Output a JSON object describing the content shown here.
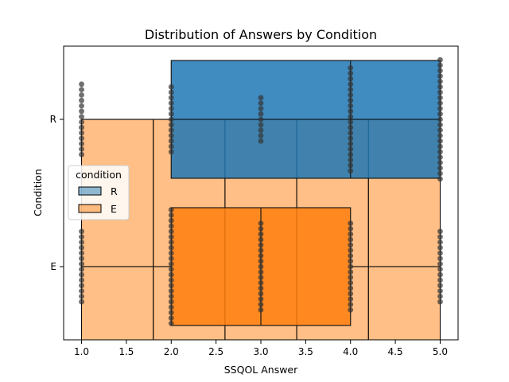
{
  "chart_data": {
    "type": "box",
    "title": "Distribution of Answers by Condition",
    "xlabel": "SSQOL Answer",
    "ylabel": "Condition",
    "xlim": [
      0.8,
      5.2
    ],
    "xticks": [
      "1.0",
      "1.5",
      "2.0",
      "2.5",
      "3.0",
      "3.5",
      "4.0",
      "4.5",
      "5.0"
    ],
    "categories": [
      "R",
      "E"
    ],
    "colors": {
      "R": "#1f77b4",
      "E": "#ff7f0e"
    },
    "legend": {
      "title": "condition",
      "placement": "center-left",
      "entries": [
        {
          "label": "R",
          "color": "#1f77b4"
        },
        {
          "label": "E",
          "color": "#ff7f0e"
        }
      ]
    },
    "histogram_bands": [
      {
        "condition": "R",
        "bins": [
          [
            2.0,
            5.0
          ]
        ],
        "color": "#1f77b4"
      },
      {
        "condition": "E",
        "bins": [
          [
            1.0,
            1.8
          ],
          [
            1.8,
            2.6
          ],
          [
            2.6,
            3.4
          ],
          [
            3.4,
            4.2
          ],
          [
            4.2,
            5.0
          ]
        ],
        "color": "#ff7f0e"
      }
    ],
    "boxes": [
      {
        "condition": "R",
        "q1": 2.0,
        "q3": 5.0,
        "median": 4.0,
        "whisker_low": 1.0,
        "whisker_high": 5.0,
        "color": "#1f77b4"
      },
      {
        "condition": "E",
        "q1": 2.0,
        "q3": 4.0,
        "median": 3.0,
        "whisker_low": 1.0,
        "whisker_high": 5.0,
        "color": "#ff7f0e"
      }
    ],
    "swarm": [
      {
        "condition": "R",
        "x": 1,
        "count": 14
      },
      {
        "condition": "R",
        "x": 2,
        "count": 13
      },
      {
        "condition": "R",
        "x": 3,
        "count": 9
      },
      {
        "condition": "R",
        "x": 4,
        "count": 20
      },
      {
        "condition": "R",
        "x": 5,
        "count": 23
      },
      {
        "condition": "E",
        "x": 1,
        "count": 14
      },
      {
        "condition": "E",
        "x": 2,
        "count": 22
      },
      {
        "condition": "E",
        "x": 3,
        "count": 17
      },
      {
        "condition": "E",
        "x": 4,
        "count": 17
      },
      {
        "condition": "E",
        "x": 5,
        "count": 14
      }
    ]
  }
}
